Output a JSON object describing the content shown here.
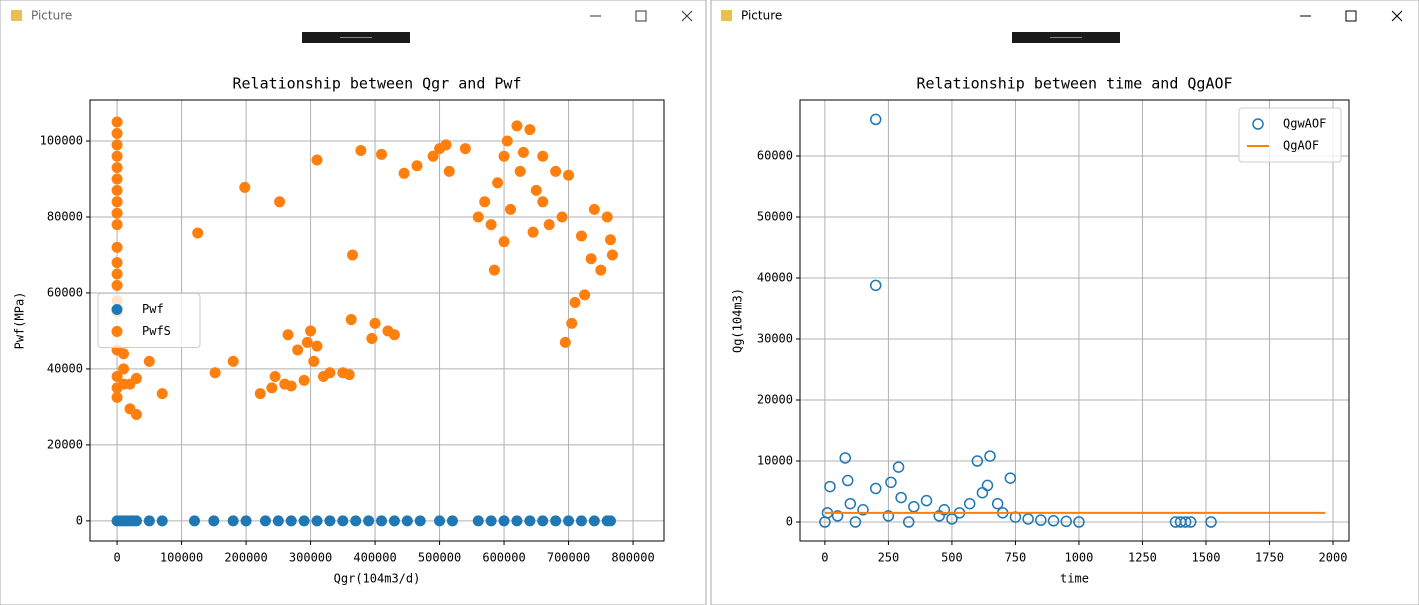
{
  "windows": [
    {
      "title": "Picture"
    },
    {
      "title": "Picture"
    }
  ],
  "chart_data": [
    {
      "type": "scatter",
      "title": "Relationship between Qgr and Pwf",
      "x_label": "Qgr(104m3/d)",
      "y_label": "Pwf(MPa)",
      "xlim": [
        -42000,
        848000
      ],
      "xticks": [
        0,
        100000,
        200000,
        300000,
        400000,
        500000,
        600000,
        700000,
        800000
      ],
      "ylim": [
        -5300,
        110800
      ],
      "yticks": [
        0,
        20000,
        40000,
        60000,
        80000,
        100000
      ],
      "grid": true,
      "legend": "center left",
      "series": [
        {
          "name": "Pwf",
          "color": "#1f77b4",
          "marker_filled": true,
          "x": [
            0,
            5000,
            10000,
            15000,
            20000,
            25000,
            30000,
            50000,
            70000,
            120000,
            150000,
            180000,
            200000,
            230000,
            250000,
            270000,
            290000,
            310000,
            330000,
            350000,
            370000,
            390000,
            410000,
            430000,
            450000,
            470000,
            500000,
            520000,
            560000,
            580000,
            600000,
            620000,
            640000,
            660000,
            680000,
            700000,
            720000,
            740000,
            760000,
            765000
          ],
          "values": [
            0,
            0,
            0,
            0,
            0,
            0,
            0,
            0,
            0,
            0,
            0,
            0,
            0,
            0,
            0,
            0,
            0,
            0,
            0,
            0,
            0,
            0,
            0,
            0,
            0,
            0,
            0,
            0,
            0,
            0,
            0,
            0,
            0,
            0,
            0,
            0,
            0,
            0,
            0,
            0
          ]
        },
        {
          "name": "PwfS",
          "color": "#ff7f0e",
          "marker_filled": true,
          "x": [
            0,
            0,
            0,
            0,
            0,
            0,
            0,
            0,
            0,
            0,
            0,
            0,
            0,
            0,
            0,
            0,
            0,
            0,
            0,
            0,
            0,
            10000,
            10000,
            10000,
            20000,
            20000,
            30000,
            30000,
            50000,
            70000,
            125000,
            152000,
            180000,
            198000,
            222000,
            252000,
            240000,
            245000,
            260000,
            270000,
            265000,
            280000,
            290000,
            295000,
            300000,
            305000,
            310000,
            310000,
            320000,
            330000,
            350000,
            360000,
            363000,
            365000,
            378000,
            395000,
            400000,
            410000,
            420000,
            430000,
            445000,
            465000,
            490000,
            500000,
            510000,
            515000,
            540000,
            560000,
            570000,
            580000,
            585000,
            590000,
            600000,
            605000,
            610000,
            620000,
            625000,
            630000,
            640000,
            650000,
            660000,
            660000,
            670000,
            680000,
            690000,
            695000,
            700000,
            705000,
            710000,
            720000,
            725000,
            735000,
            740000,
            750000,
            760000,
            765000,
            768000,
            600000,
            645000
          ],
          "values": [
            105000,
            102000,
            99000,
            96000,
            93000,
            90000,
            87000,
            84000,
            81000,
            78000,
            72000,
            68000,
            65000,
            62000,
            58000,
            55000,
            50000,
            45000,
            38000,
            35000,
            32500,
            44000,
            40000,
            36000,
            29500,
            36000,
            28000,
            37500,
            42000,
            33500,
            75800,
            39000,
            42000,
            87800,
            33500,
            84000,
            35000,
            38000,
            36000,
            35500,
            49000,
            45000,
            37000,
            47000,
            50000,
            42000,
            46000,
            95000,
            38000,
            39000,
            39000,
            38500,
            53000,
            70000,
            97500,
            48000,
            52000,
            96500,
            50000,
            49000,
            91500,
            93500,
            96000,
            98000,
            99000,
            92000,
            98000,
            80000,
            84000,
            78000,
            66000,
            89000,
            96000,
            100000,
            82000,
            104000,
            92000,
            97000,
            103000,
            87000,
            84000,
            96000,
            78000,
            92000,
            80000,
            47000,
            91000,
            52000,
            57500,
            75000,
            59500,
            69000,
            82000,
            66000,
            80000,
            74000,
            70000,
            73500,
            76000
          ]
        }
      ]
    },
    {
      "type": "scatter",
      "title": "Relationship between time and QgAOF",
      "x_label": "time",
      "y_label": "Qg(104m3)",
      "xlim": [
        -98,
        2063
      ],
      "xticks": [
        0,
        250,
        500,
        750,
        1000,
        1250,
        1500,
        1750,
        2000
      ],
      "ylim": [
        -3115,
        69180
      ],
      "yticks": [
        0,
        10000,
        20000,
        30000,
        40000,
        50000,
        60000
      ],
      "grid": true,
      "legend": "upper right",
      "series": [
        {
          "name": "QgwAOF",
          "color": "#1f77b4",
          "marker_filled": false,
          "x": [
            200,
            200,
            80,
            290,
            600,
            650,
            730,
            20,
            200,
            90,
            260,
            100,
            150,
            50,
            0,
            10,
            300,
            350,
            400,
            450,
            500,
            530,
            570,
            620,
            680,
            700,
            750,
            800,
            850,
            900,
            950,
            1000,
            1380,
            1400,
            1420,
            1440,
            1520,
            120,
            250,
            330,
            470,
            640
          ],
          "values": [
            66000,
            38800,
            10500,
            9000,
            10000,
            10800,
            7200,
            5800,
            5500,
            6800,
            6500,
            3000,
            2000,
            1000,
            0,
            1500,
            4000,
            2500,
            3500,
            1000,
            500,
            1500,
            3000,
            4800,
            3000,
            1500,
            800,
            500,
            300,
            200,
            100,
            0,
            0,
            0,
            0,
            0,
            0,
            0,
            1000,
            0,
            2000,
            6000
          ]
        },
        {
          "name": "QgAOF",
          "color": "#ff7f0e",
          "style": "line",
          "x": [
            0,
            1970
          ],
          "values": [
            1500,
            1500
          ]
        }
      ]
    }
  ]
}
